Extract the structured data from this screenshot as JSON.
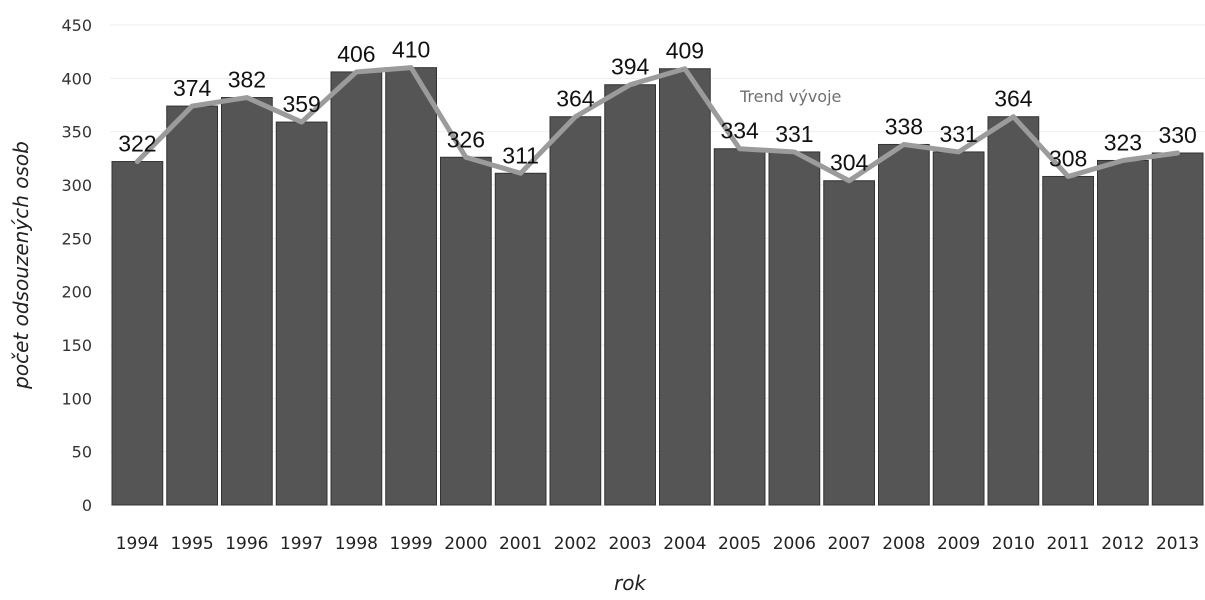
{
  "chart_data": {
    "type": "bar",
    "categories": [
      "1994",
      "1995",
      "1996",
      "1997",
      "1998",
      "1999",
      "2000",
      "2001",
      "2002",
      "2003",
      "2004",
      "2005",
      "2006",
      "2007",
      "2008",
      "2009",
      "2010",
      "2011",
      "2012",
      "2013"
    ],
    "series": [
      {
        "type": "bar",
        "values": [
          322,
          374,
          382,
          359,
          406,
          410,
          326,
          311,
          364,
          394,
          409,
          334,
          331,
          304,
          338,
          331,
          364,
          308,
          323,
          330
        ]
      },
      {
        "type": "line",
        "values": [
          322,
          374,
          382,
          359,
          406,
          410,
          326,
          311,
          364,
          394,
          409,
          334,
          331,
          304,
          338,
          331,
          364,
          308,
          323,
          330
        ]
      }
    ],
    "data_labels": [
      "322",
      "374",
      "382",
      "359",
      "406",
      "410",
      "326",
      "311",
      "364",
      "394",
      "409",
      "334",
      "331",
      "304",
      "338",
      "331",
      "364",
      "308",
      "323",
      "330"
    ],
    "xlabel": "rok",
    "ylabel": "počet odsouzených osob",
    "ylim": [
      0,
      450
    ],
    "yticks": [
      0,
      50,
      100,
      150,
      200,
      250,
      300,
      350,
      400,
      450
    ],
    "annotations": [
      {
        "text": "Trend vývoje"
      }
    ],
    "grid": true,
    "legend": "none",
    "colors": {
      "bar": "#555555",
      "bar_border": "#333333",
      "line": "#9b9b9b",
      "grid": "#eeeeee",
      "annotation": "#707070"
    }
  }
}
